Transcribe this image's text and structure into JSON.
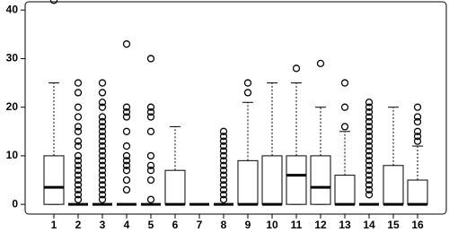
{
  "chart_data": {
    "type": "boxplot",
    "categories": [
      "1",
      "2",
      "3",
      "4",
      "5",
      "6",
      "7",
      "8",
      "9",
      "10",
      "11",
      "12",
      "13",
      "14",
      "15",
      "16"
    ],
    "boxes": [
      {
        "low": 0,
        "q1": 0,
        "median": 3.5,
        "q3": 10,
        "high": 25,
        "outliers": [
          42
        ]
      },
      {
        "low": 0,
        "q1": 0,
        "median": 0,
        "q3": 0,
        "high": 0,
        "outliers": [
          1,
          2,
          3,
          4,
          5,
          6,
          7,
          8,
          9,
          10,
          12,
          13,
          15,
          16,
          18,
          20,
          23,
          25
        ]
      },
      {
        "low": 0,
        "q1": 0,
        "median": 0,
        "q3": 0,
        "high": 0,
        "outliers": [
          1,
          2,
          3,
          4,
          5,
          6,
          7,
          8,
          9,
          10,
          11,
          12,
          13,
          14,
          15,
          16,
          17,
          18,
          20,
          21,
          23,
          25
        ]
      },
      {
        "low": 0,
        "q1": 0,
        "median": 0,
        "q3": 0,
        "high": 0,
        "outliers": [
          3,
          5,
          7,
          8,
          9,
          10,
          12,
          15,
          18,
          19,
          20,
          33
        ]
      },
      {
        "low": 0,
        "q1": 0,
        "median": 0,
        "q3": 0,
        "high": 0,
        "outliers": [
          1,
          5,
          7,
          8,
          10,
          15,
          18,
          19,
          20,
          30
        ]
      },
      {
        "low": 0,
        "q1": 0,
        "median": 0,
        "q3": 7,
        "high": 16,
        "outliers": []
      },
      {
        "low": 0,
        "q1": 0,
        "median": 0,
        "q3": 0,
        "high": 0,
        "outliers": []
      },
      {
        "low": 0,
        "q1": 0,
        "median": 0,
        "q3": 0,
        "high": 0,
        "outliers": [
          1,
          2,
          3,
          4,
          5,
          6,
          7,
          8,
          9,
          10,
          11,
          12,
          13,
          14,
          15
        ]
      },
      {
        "low": 0,
        "q1": 0,
        "median": 0,
        "q3": 9,
        "high": 21,
        "outliers": [
          23,
          25
        ]
      },
      {
        "low": 0,
        "q1": 0,
        "median": 0,
        "q3": 10,
        "high": 25,
        "outliers": []
      },
      {
        "low": 0,
        "q1": 0,
        "median": 6,
        "q3": 10,
        "high": 25,
        "outliers": [
          28
        ]
      },
      {
        "low": 0,
        "q1": 0,
        "median": 3.5,
        "q3": 10,
        "high": 20,
        "outliers": [
          29
        ]
      },
      {
        "low": 0,
        "q1": 0,
        "median": 0,
        "q3": 6,
        "high": 15,
        "outliers": [
          16,
          20,
          25
        ]
      },
      {
        "low": 0,
        "q1": 0,
        "median": 0,
        "q3": 0,
        "high": 0,
        "outliers": [
          2,
          3,
          4,
          5,
          6,
          7,
          8,
          9,
          10,
          11,
          12,
          13,
          14,
          15,
          16,
          17,
          18,
          19,
          20,
          21
        ]
      },
      {
        "low": 0,
        "q1": 0,
        "median": 0,
        "q3": 8,
        "high": 20,
        "outliers": []
      },
      {
        "low": 0,
        "q1": 0,
        "median": 0,
        "q3": 5,
        "high": 12,
        "outliers": [
          13,
          14,
          15,
          17,
          18,
          20
        ]
      }
    ],
    "ylim": [
      -2,
      41.7
    ],
    "yticks": [
      0,
      10,
      20,
      30,
      40
    ],
    "color": "#000000"
  }
}
